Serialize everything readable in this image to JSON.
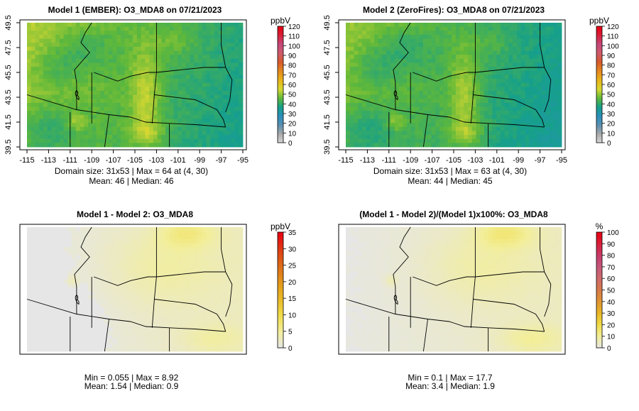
{
  "page_title": "",
  "chart_data": [
    {
      "type": "heatmap",
      "title": "Model 1 (EMBER): O3_MDA8 on 07/21/2023",
      "field": "model1",
      "xticks": [
        "-115",
        "-113",
        "-111",
        "-109",
        "-107",
        "-105",
        "-103",
        "-101",
        "-99",
        "-97",
        "-95"
      ],
      "yticks": [
        "39.5",
        "41.5",
        "43.5",
        "45.5",
        "47.5",
        "49.5"
      ],
      "xlim": [
        -115,
        -95
      ],
      "ylim": [
        39.5,
        49.5
      ],
      "grid_size": "31x53",
      "colorbar": {
        "unit": "ppbV",
        "min": 0,
        "max": 120,
        "ticks": [
          "0",
          "10",
          "20",
          "30",
          "40",
          "50",
          "60",
          "70",
          "80",
          "90",
          "100",
          "110",
          "120"
        ],
        "colors": [
          "#d9d9d9",
          "#a9a9a9",
          "#5a8fb0",
          "#2a8fbd",
          "#16a08a",
          "#5fb83a",
          "#d7d832",
          "#e8b51a",
          "#e58a1f",
          "#d85a2a",
          "#cf5a6a",
          "#c44a7c",
          "#d8203a",
          "#e60012"
        ]
      },
      "stats_line1": "Domain size: 31x53 | Max = 64 at (4, 30)",
      "stats_line2": "Mean: 46 |  Median: 46"
    },
    {
      "type": "heatmap",
      "title": "Model 2 (ZeroFires): O3_MDA8 on 07/21/2023",
      "field": "model2",
      "xticks": [
        "-115",
        "-113",
        "-111",
        "-109",
        "-107",
        "-105",
        "-103",
        "-101",
        "-99",
        "-97",
        "-95"
      ],
      "yticks": [
        "39.5",
        "41.5",
        "43.5",
        "45.5",
        "47.5",
        "49.5"
      ],
      "xlim": [
        -115,
        -95
      ],
      "ylim": [
        39.5,
        49.5
      ],
      "grid_size": "31x53",
      "colorbar": {
        "unit": "ppbV",
        "min": 0,
        "max": 120,
        "ticks": [
          "0",
          "10",
          "20",
          "30",
          "40",
          "50",
          "60",
          "70",
          "80",
          "90",
          "100",
          "110",
          "120"
        ],
        "colors": [
          "#d9d9d9",
          "#a9a9a9",
          "#5a8fb0",
          "#2a8fbd",
          "#16a08a",
          "#5fb83a",
          "#d7d832",
          "#e8b51a",
          "#e58a1f",
          "#d85a2a",
          "#cf5a6a",
          "#c44a7c",
          "#d8203a",
          "#e60012"
        ]
      },
      "stats_line1": "Domain size: 31x53 | Max = 63 at (4, 30)",
      "stats_line2": "Mean: 44 |  Median: 45"
    },
    {
      "type": "heatmap",
      "title": "Model 1 - Model 2: O3_MDA8",
      "field": "diff",
      "colorbar": {
        "unit": "ppbV",
        "min": 0,
        "max": 35,
        "ticks": [
          "0",
          "5",
          "10",
          "15",
          "20",
          "25",
          "30",
          "35"
        ],
        "colors": [
          "#e6e6e6",
          "#f2ee9a",
          "#f0dc4a",
          "#e9b826",
          "#e3961a",
          "#dd6a18",
          "#e03a14",
          "#e60012"
        ]
      },
      "stats_line1": "Min = 0.055 | Max = 8.92",
      "stats_line2": "Mean: 1.54 |  Median: 0.9"
    },
    {
      "type": "heatmap",
      "title": "(Model 1 - Model 2)/(Model 1)x100%: O3_MDA8",
      "field": "pct",
      "colorbar": {
        "unit": "%",
        "min": 0,
        "max": 100,
        "ticks": [
          "0",
          "10",
          "20",
          "30",
          "40",
          "50",
          "60",
          "70",
          "80",
          "90",
          "100"
        ],
        "colors": [
          "#e6e6e6",
          "#f2ee9a",
          "#f0dc4a",
          "#e8b826",
          "#e09632",
          "#d87a4a",
          "#cf6a6a",
          "#c4587a",
          "#c83a6a",
          "#d8203a",
          "#e60012"
        ]
      },
      "stats_line1": "Min = 0.1 | Max = 17.7",
      "stats_line2": "Mean: 3.4 |  Median: 1.9"
    }
  ]
}
